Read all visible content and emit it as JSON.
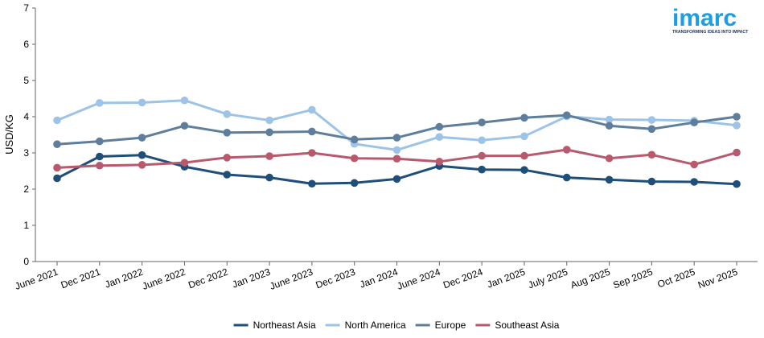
{
  "logo": {
    "word": "imarc",
    "tagline": "TRANSFORMING IDEAS INTO IMPACT",
    "color": "#1a9fe0",
    "tagline_color": "#1a3a6b"
  },
  "chart_data": {
    "type": "line",
    "title": "",
    "xlabel": "",
    "ylabel": "USD/KG",
    "ylim": [
      0,
      7
    ],
    "yticks": [
      0,
      1,
      2,
      3,
      4,
      5,
      6,
      7
    ],
    "grid": false,
    "legend_position": "bottom-center",
    "categories": [
      "June 2021",
      "Dec 2021",
      "Jan 2022",
      "June 2022",
      "Dec 2022",
      "Jan 2023",
      "June 2023",
      "Dec 2023",
      "Jan 2024",
      "June 2024",
      "Dec 2024",
      "Jan 2025",
      "July 2025",
      "Aug 2025",
      "Sep 2025",
      "Oct 2025",
      "Nov 2025"
    ],
    "series": [
      {
        "name": "Northeast Asia",
        "color": "#1f4e79",
        "values": [
          2.3,
          2.9,
          2.94,
          2.62,
          2.4,
          2.32,
          2.15,
          2.17,
          2.28,
          2.64,
          2.54,
          2.53,
          2.32,
          2.26,
          2.21,
          2.2,
          2.14
        ]
      },
      {
        "name": "North America",
        "color": "#9dc3e6",
        "values": [
          3.9,
          4.38,
          4.39,
          4.45,
          4.07,
          3.9,
          4.19,
          3.25,
          3.08,
          3.44,
          3.35,
          3.46,
          4.01,
          3.92,
          3.91,
          3.89,
          3.76
        ]
      },
      {
        "name": "Europe",
        "color": "#5f7e9b",
        "values": [
          3.24,
          3.32,
          3.42,
          3.75,
          3.56,
          3.57,
          3.59,
          3.37,
          3.42,
          3.72,
          3.84,
          3.97,
          4.04,
          3.75,
          3.66,
          3.84,
          4.0
        ]
      },
      {
        "name": "Southeast Asia",
        "color": "#b85a6e",
        "values": [
          2.59,
          2.65,
          2.67,
          2.73,
          2.87,
          2.91,
          3.0,
          2.85,
          2.84,
          2.76,
          2.92,
          2.92,
          3.09,
          2.85,
          2.95,
          2.68,
          3.01
        ]
      }
    ]
  }
}
